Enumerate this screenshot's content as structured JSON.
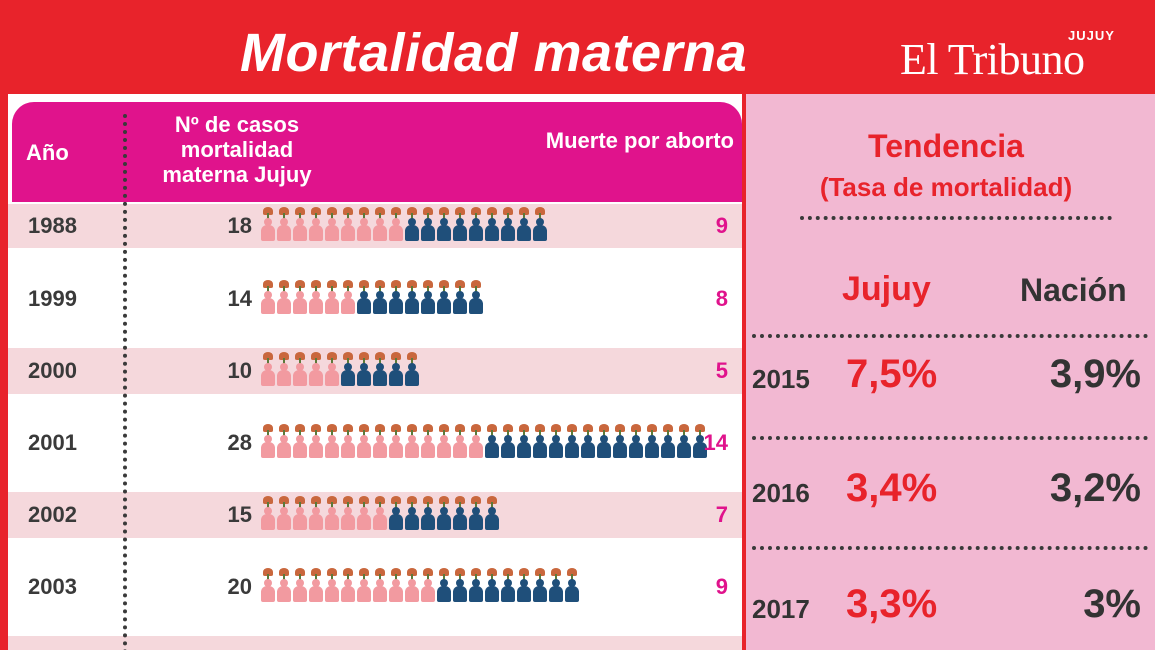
{
  "header": {
    "title": "Mortalidad materna",
    "brand_name": "El Tribuno",
    "brand_region": "JUJUY"
  },
  "table": {
    "col_year": "Año",
    "col_cases": "Nº de casos mortalidad materna Jujuy",
    "col_abortion": "Muerte por aborto"
  },
  "trend": {
    "title": "Tendencia",
    "subtitle": "(Tasa de mortalidad)",
    "col_jujuy": "Jujuy",
    "col_nacion": "Nación",
    "rows": [
      {
        "year": "2015",
        "jujuy": "7,5%",
        "nacion": "3,9%"
      },
      {
        "year": "2016",
        "jujuy": "3,4%",
        "nacion": "3,2%"
      },
      {
        "year": "2017",
        "jujuy": "3,3%",
        "nacion": "3%"
      }
    ]
  },
  "colors": {
    "header_red": "#e8232b",
    "table_header_magenta": "#e0138c",
    "shaded_row": "#f5d8dc",
    "trend_pink": "#f2b8d2",
    "figure_pink": "#f29aa0",
    "figure_blue": "#1f4f7a"
  },
  "chart_data": {
    "type": "table",
    "title": "Mortalidad materna",
    "categories": [
      "1988",
      "1999",
      "2000",
      "2001",
      "2002",
      "2003"
    ],
    "series": [
      {
        "name": "Nº de casos mortalidad materna Jujuy",
        "values": [
          18,
          14,
          10,
          28,
          15,
          20
        ]
      },
      {
        "name": "Muerte por aborto",
        "values": [
          9,
          8,
          5,
          14,
          7,
          9
        ]
      }
    ]
  }
}
